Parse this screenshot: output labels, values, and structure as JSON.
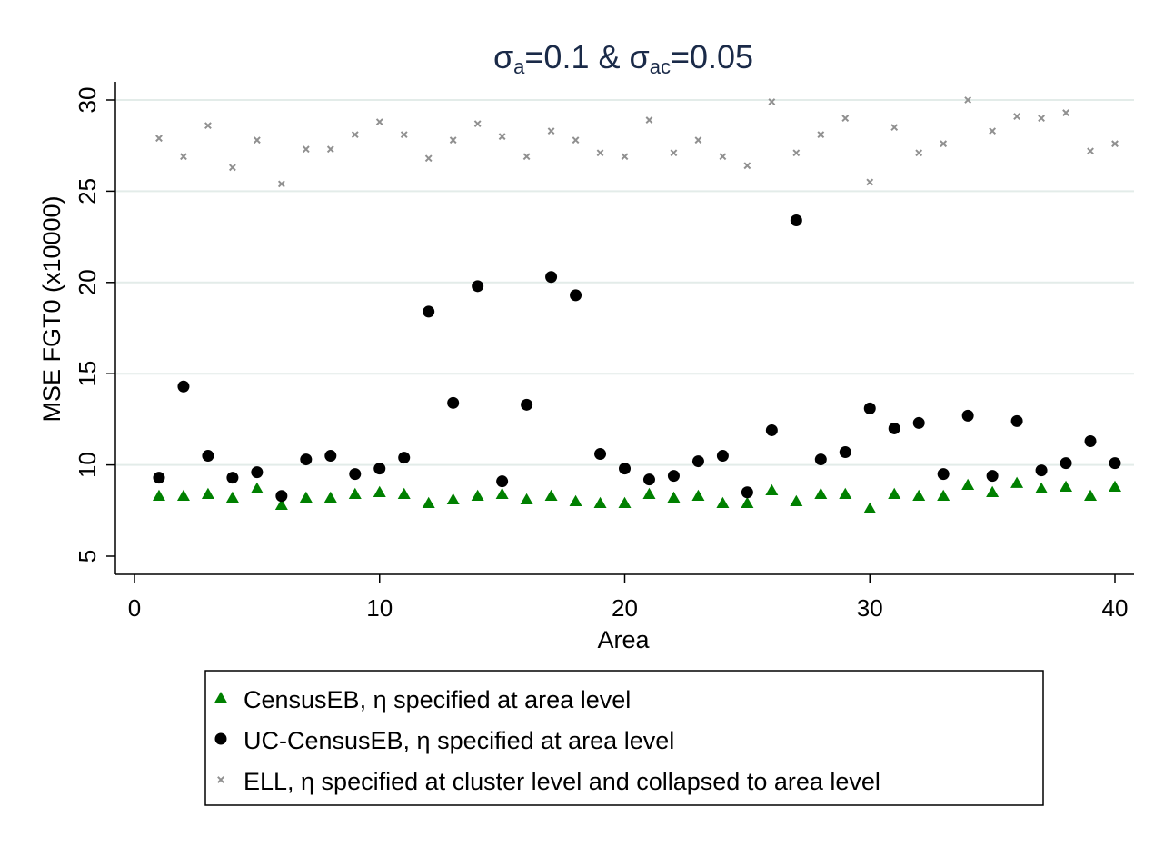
{
  "chart_data": {
    "type": "scatter",
    "title_parts": {
      "s1": "σ",
      "sub1": "a",
      "mid": "=0.1 & σ",
      "sub2": "ac",
      "end": "=0.05"
    },
    "xlabel": "Area",
    "ylabel": "MSE FGT0 (x10000)",
    "xlim": [
      -0.5,
      40.8
    ],
    "ylim": [
      4.1,
      30.9
    ],
    "xticks": [
      0,
      10,
      20,
      30,
      40
    ],
    "yticks": [
      5,
      10,
      15,
      20,
      25,
      30
    ],
    "grid": true,
    "legend_position": "bottom",
    "x": [
      1,
      2,
      3,
      4,
      5,
      6,
      7,
      8,
      9,
      10,
      11,
      12,
      13,
      14,
      15,
      16,
      17,
      18,
      19,
      20,
      21,
      22,
      23,
      24,
      25,
      26,
      27,
      28,
      29,
      30,
      31,
      32,
      33,
      34,
      35,
      36,
      37,
      38,
      39,
      40
    ],
    "series": [
      {
        "name": "CensusEB, η specified at area level",
        "marker": "triangle",
        "color": "#008000",
        "values": [
          8.3,
          8.3,
          8.4,
          8.2,
          8.7,
          7.8,
          8.2,
          8.2,
          8.4,
          8.5,
          8.4,
          7.9,
          8.1,
          8.3,
          8.4,
          8.1,
          8.3,
          8.0,
          7.9,
          7.9,
          8.4,
          8.2,
          8.3,
          7.9,
          7.9,
          8.6,
          8.0,
          8.4,
          8.4,
          7.6,
          8.4,
          8.3,
          8.3,
          8.9,
          8.5,
          9.0,
          8.7,
          8.8,
          8.3,
          8.8
        ]
      },
      {
        "name": "UC-CensusEB, η specified at area level",
        "marker": "circle",
        "color": "#000000",
        "values": [
          9.3,
          14.3,
          10.5,
          9.3,
          9.6,
          8.3,
          10.3,
          10.5,
          9.5,
          9.8,
          10.4,
          18.4,
          13.4,
          19.8,
          9.1,
          13.3,
          20.3,
          19.3,
          10.6,
          9.8,
          9.2,
          9.4,
          10.2,
          10.5,
          8.5,
          11.9,
          23.4,
          10.3,
          10.7,
          13.1,
          12.0,
          12.3,
          9.5,
          12.7,
          9.4,
          12.4,
          9.7,
          10.1,
          11.3,
          10.1
        ]
      },
      {
        "name": "ELL, η specified at cluster level and collapsed to area level",
        "marker": "x",
        "color": "#909090",
        "values": [
          27.9,
          26.9,
          28.6,
          26.3,
          27.8,
          25.4,
          27.3,
          27.3,
          28.1,
          28.8,
          28.1,
          26.8,
          27.8,
          28.7,
          28.0,
          26.9,
          28.3,
          27.8,
          27.1,
          26.9,
          28.9,
          27.1,
          27.8,
          26.9,
          26.4,
          29.9,
          27.1,
          28.1,
          29.0,
          25.5,
          28.5,
          27.1,
          27.6,
          30.0,
          28.3,
          29.1,
          29.0,
          29.3,
          27.2,
          27.6
        ]
      }
    ]
  },
  "colors": {
    "title": "#1a2a48",
    "grid": "#e3ece9",
    "axis": "#000000"
  }
}
